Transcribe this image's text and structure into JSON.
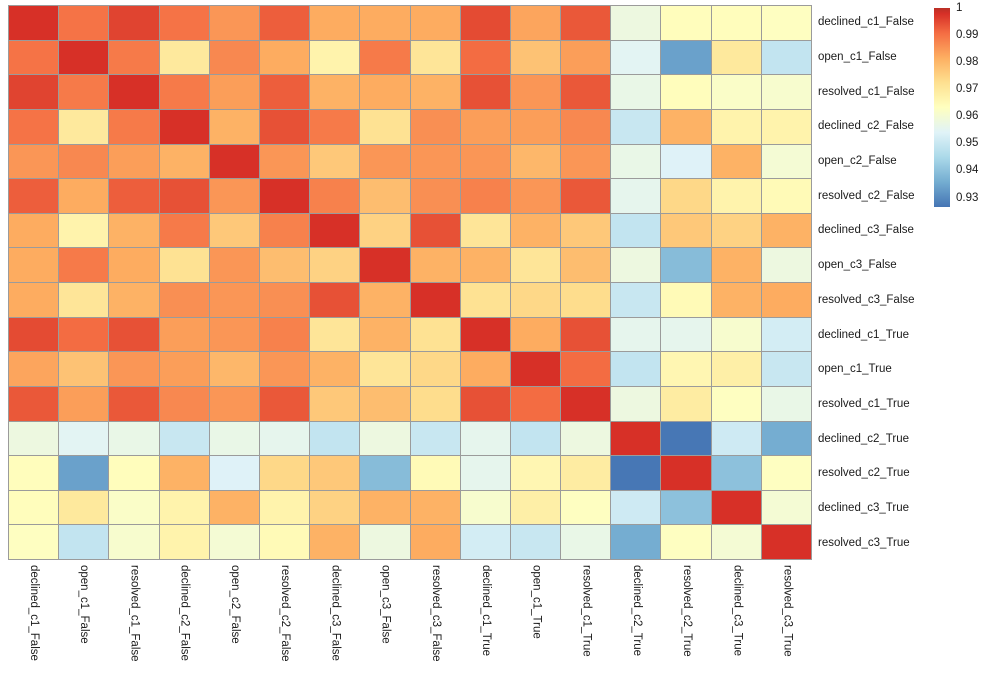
{
  "figure": {
    "background": "#ffffff",
    "label_color": "#1a1a1a",
    "grid_line_color": "#9b9b9b"
  },
  "chart_data": {
    "type": "heatmap",
    "title": "",
    "xlabel": "",
    "ylabel": "",
    "grid": true,
    "legend_position": "top-right-colorbar",
    "labels": [
      "declined_c1_False",
      "open_c1_False",
      "resolved_c1_False",
      "declined_c2_False",
      "open_c2_False",
      "resolved_c2_False",
      "declined_c3_False",
      "open_c3_False",
      "resolved_c3_False",
      "declined_c1_True",
      "open_c1_True",
      "resolved_c1_True",
      "declined_c2_True",
      "resolved_c2_True",
      "declined_c3_True",
      "resolved_c3_True"
    ],
    "matrix": [
      [
        1.0,
        0.99,
        0.997,
        0.99,
        0.985,
        0.993,
        0.982,
        0.982,
        0.982,
        0.996,
        0.983,
        0.994,
        0.958,
        0.964,
        0.964,
        0.963
      ],
      [
        0.99,
        1.0,
        0.989,
        0.97,
        0.987,
        0.982,
        0.967,
        0.989,
        0.971,
        0.991,
        0.978,
        0.984,
        0.955,
        0.934,
        0.97,
        0.949
      ],
      [
        0.997,
        0.989,
        1.0,
        0.989,
        0.984,
        0.993,
        0.981,
        0.982,
        0.981,
        0.995,
        0.985,
        0.994,
        0.957,
        0.964,
        0.962,
        0.961
      ],
      [
        0.99,
        0.97,
        0.989,
        1.0,
        0.981,
        0.995,
        0.989,
        0.972,
        0.986,
        0.984,
        0.984,
        0.987,
        0.95,
        0.981,
        0.967,
        0.967
      ],
      [
        0.985,
        0.987,
        0.984,
        0.981,
        1.0,
        0.985,
        0.977,
        0.985,
        0.985,
        0.985,
        0.98,
        0.985,
        0.957,
        0.954,
        0.981,
        0.96
      ],
      [
        0.993,
        0.982,
        0.993,
        0.995,
        0.985,
        1.0,
        0.988,
        0.979,
        0.986,
        0.988,
        0.985,
        0.994,
        0.956,
        0.974,
        0.967,
        0.965
      ],
      [
        0.982,
        0.967,
        0.981,
        0.989,
        0.977,
        0.988,
        1.0,
        0.975,
        0.995,
        0.971,
        0.981,
        0.977,
        0.949,
        0.977,
        0.975,
        0.981
      ],
      [
        0.982,
        0.989,
        0.982,
        0.972,
        0.985,
        0.979,
        0.975,
        1.0,
        0.981,
        0.981,
        0.971,
        0.979,
        0.958,
        0.939,
        0.981,
        0.958
      ],
      [
        0.982,
        0.971,
        0.981,
        0.986,
        0.985,
        0.986,
        0.995,
        0.981,
        1.0,
        0.972,
        0.974,
        0.973,
        0.95,
        0.965,
        0.981,
        0.982
      ],
      [
        0.996,
        0.991,
        0.995,
        0.984,
        0.985,
        0.988,
        0.971,
        0.981,
        0.972,
        1.0,
        0.982,
        0.995,
        0.956,
        0.956,
        0.961,
        0.952
      ],
      [
        0.983,
        0.978,
        0.985,
        0.984,
        0.98,
        0.985,
        0.981,
        0.971,
        0.974,
        0.982,
        1.0,
        0.991,
        0.949,
        0.966,
        0.968,
        0.95
      ],
      [
        0.994,
        0.984,
        0.994,
        0.987,
        0.985,
        0.994,
        0.977,
        0.979,
        0.973,
        0.995,
        0.991,
        1.0,
        0.958,
        0.969,
        0.963,
        0.957
      ],
      [
        0.958,
        0.955,
        0.957,
        0.95,
        0.957,
        0.956,
        0.949,
        0.958,
        0.95,
        0.956,
        0.949,
        0.958,
        1.0,
        0.927,
        0.951,
        0.936
      ],
      [
        0.964,
        0.934,
        0.964,
        0.981,
        0.954,
        0.974,
        0.977,
        0.939,
        0.965,
        0.956,
        0.966,
        0.969,
        0.927,
        1.0,
        0.94,
        0.963
      ],
      [
        0.964,
        0.97,
        0.962,
        0.967,
        0.981,
        0.967,
        0.975,
        0.981,
        0.981,
        0.961,
        0.968,
        0.963,
        0.951,
        0.94,
        1.0,
        0.96
      ],
      [
        0.963,
        0.949,
        0.961,
        0.967,
        0.96,
        0.965,
        0.981,
        0.958,
        0.982,
        0.952,
        0.95,
        0.957,
        0.936,
        0.963,
        0.96,
        1.0
      ]
    ],
    "value_range": [
      0.9267,
      1.0
    ],
    "colormap": {
      "name": "RdYlBu_r",
      "anchors": [
        [
          0.9267,
          "#4575b4"
        ],
        [
          0.9359,
          "#74add1"
        ],
        [
          0.945,
          "#abd9e9"
        ],
        [
          0.9542,
          "#e0f3f8"
        ],
        [
          0.9634,
          "#ffffbf"
        ],
        [
          0.9725,
          "#fee090"
        ],
        [
          0.9817,
          "#fdae61"
        ],
        [
          0.9908,
          "#f46d43"
        ],
        [
          1.0,
          "#d73027"
        ]
      ],
      "colorbar_top_cap": "#b93026"
    },
    "colorbar_ticks": [
      "1",
      "0.99",
      "0.98",
      "0.97",
      "0.96",
      "0.95",
      "0.94",
      "0.93"
    ]
  }
}
